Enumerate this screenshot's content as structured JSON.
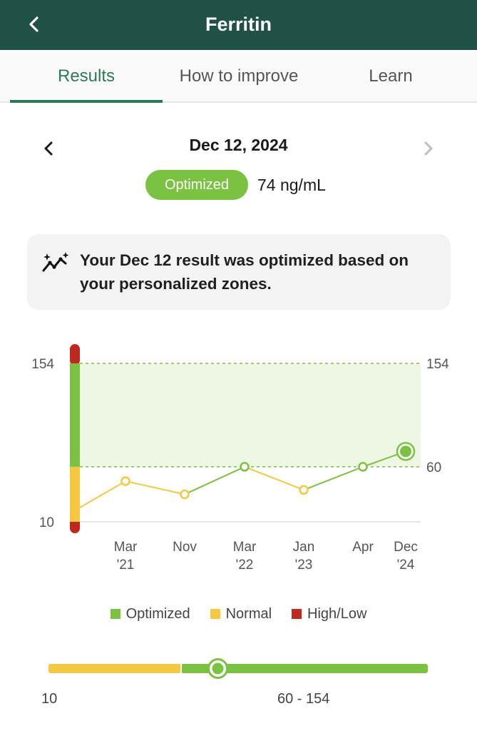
{
  "header": {
    "title": "Ferritin",
    "back_icon": "chevron-left-icon",
    "background": "#1f5147"
  },
  "tabs": [
    {
      "label": "Results",
      "active": true
    },
    {
      "label": "How to improve",
      "active": false
    },
    {
      "label": "Learn",
      "active": false
    }
  ],
  "result": {
    "date": "Dec 12, 2024",
    "status": "Optimized",
    "value": "74 ng/mL",
    "status_color": "#7cc242"
  },
  "info_card": {
    "icon": "sparkle-trend-icon",
    "text": "Your Dec 12 result was optimized based on your personalized zones."
  },
  "chart_data": {
    "type": "line",
    "ylim": [
      10,
      154
    ],
    "y_ticks_left": [
      "154",
      "10"
    ],
    "y_ticks_right": [
      "154",
      "60"
    ],
    "optimized_range": [
      60,
      154
    ],
    "x_labels": [
      {
        "line1": "Mar",
        "line2": "'21"
      },
      {
        "line1": "Nov",
        "line2": ""
      },
      {
        "line1": "Mar",
        "line2": "'22"
      },
      {
        "line1": "Jan",
        "line2": "'23"
      },
      {
        "line1": "Apr",
        "line2": ""
      },
      {
        "line1": "Dec",
        "line2": "'24"
      }
    ],
    "series": [
      {
        "points": [
          {
            "value": 23,
            "zone": "normal"
          },
          {
            "value": 47,
            "zone": "normal"
          },
          {
            "value": 35,
            "zone": "normal"
          },
          {
            "value": 60,
            "zone": "optimized"
          },
          {
            "value": 39,
            "zone": "normal"
          },
          {
            "value": 60,
            "zone": "optimized"
          },
          {
            "value": 74,
            "zone": "optimized"
          }
        ]
      }
    ],
    "colors": {
      "optimized": "#7cc242",
      "normal": "#f5c842",
      "high_low": "#c0281e",
      "optimized_fill": "#eef7e4"
    }
  },
  "legend": [
    {
      "label": "Optimized",
      "color": "#7cc242"
    },
    {
      "label": "Normal",
      "color": "#f5c842"
    },
    {
      "label": "High/Low",
      "color": "#c0281e"
    }
  ],
  "range_bar": {
    "low_label": "10",
    "optimized_label": "60 - 154",
    "current_value": 74
  }
}
